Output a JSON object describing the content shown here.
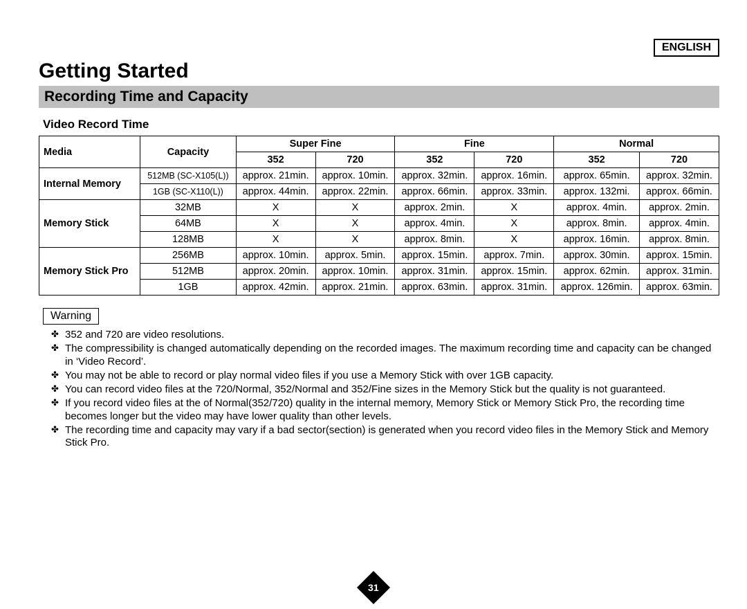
{
  "lang": "ENGLISH",
  "title": "Getting Started",
  "subtitle": "Recording Time and Capacity",
  "section": "Video Record Time",
  "header": {
    "media": "Media",
    "capacity": "Capacity",
    "qualities": [
      "Super Fine",
      "Fine",
      "Normal"
    ],
    "resolutions": [
      "352",
      "720",
      "352",
      "720",
      "352",
      "720"
    ]
  },
  "rows": [
    {
      "media": "Internal Memory",
      "capacity": "512MB (SC-X105(L))",
      "capSmall": true,
      "cells": [
        "approx. 21min.",
        "approx. 10min.",
        "approx. 32min.",
        "approx. 16min.",
        "approx. 65min.",
        "approx. 32min."
      ]
    },
    {
      "capacity": "1GB (SC-X110(L))",
      "capSmall": true,
      "cells": [
        "approx. 44min.",
        "approx. 22min.",
        "approx. 66min.",
        "approx. 33min.",
        "approx. 132mi.",
        "approx. 66min."
      ]
    },
    {
      "media": "Memory Stick",
      "capacity": "32MB",
      "cells": [
        "X",
        "X",
        "approx. 2min.",
        "X",
        "approx. 4min.",
        "approx. 2min."
      ]
    },
    {
      "capacity": "64MB",
      "cells": [
        "X",
        "X",
        "approx. 4min.",
        "X",
        "approx. 8min.",
        "approx. 4min."
      ]
    },
    {
      "capacity": "128MB",
      "cells": [
        "X",
        "X",
        "approx. 8min.",
        "X",
        "approx. 16min.",
        "approx. 8min."
      ]
    },
    {
      "media": "Memory Stick Pro",
      "capacity": "256MB",
      "cells": [
        "approx. 10min.",
        "approx. 5min.",
        "approx. 15min.",
        "approx. 7min.",
        "approx. 30min.",
        "approx. 15min."
      ]
    },
    {
      "capacity": "512MB",
      "cells": [
        "approx. 20min.",
        "approx. 10min.",
        "approx. 31min.",
        "approx. 15min.",
        "approx. 62min.",
        "approx. 31min."
      ]
    },
    {
      "capacity": "1GB",
      "cells": [
        "approx. 42min.",
        "approx. 21min.",
        "approx. 63min.",
        "approx. 31min.",
        "approx. 126min.",
        "approx. 63min."
      ]
    }
  ],
  "warningLabel": "Warning",
  "notes": [
    "352 and 720 are video resolutions.",
    "The compressibility is changed automatically depending on the recorded images. The maximum recording time and capacity can be changed in ‘Video Record’.",
    "You may not be able to record or play normal video files if you use a Memory Stick with over 1GB capacity.",
    "You can record video files at the 720/Normal, 352/Normal and 352/Fine sizes in the Memory Stick but the quality is not guaranteed.",
    "If you record video files at the of Normal(352/720) quality in the internal memory, Memory Stick or Memory Stick Pro, the recording time becomes longer but the video may have lower quality than other levels.",
    "The recording time and capacity may vary if a bad sector(section) is generated when you record video files in the Memory Stick and Memory Stick Pro."
  ],
  "pageNumber": "31"
}
